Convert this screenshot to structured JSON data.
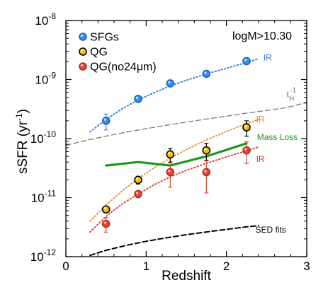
{
  "chart_data": {
    "type": "scatter",
    "xlabel": "Redshift",
    "ylabel": "sSFR (yr",
    "ylabel_sup": "-1",
    "ylabel_close": ")",
    "xlim": [
      0,
      3
    ],
    "ylim": [
      1e-12,
      1e-08
    ],
    "yscale": "log",
    "xticks": [
      0,
      1,
      2,
      3
    ],
    "yticks": [
      {
        "value": 1e-12,
        "mant": "10",
        "exp": "-12"
      },
      {
        "value": 1e-11,
        "mant": "10",
        "exp": "-11"
      },
      {
        "value": 1e-10,
        "mant": "10",
        "exp": "-10"
      },
      {
        "value": 1e-09,
        "mant": "10",
        "exp": "-9"
      },
      {
        "value": 1e-08,
        "mant": "10",
        "exp": "-8"
      }
    ],
    "subset_label": "logM>10.30",
    "legend_position": "top-left",
    "series": [
      {
        "name": "SFGs",
        "color": "#3a8ee6",
        "x": [
          0.5,
          0.9,
          1.3,
          1.75,
          2.25
        ],
        "y": [
          2e-10,
          4.7e-10,
          8.6e-10,
          1.25e-09,
          2.05e-09
        ],
        "yerr_lo": [
          6e-11,
          5e-11,
          6e-11,
          7e-11,
          9e-11
        ],
        "yerr_hi": [
          6e-11,
          5e-11,
          6e-11,
          7e-11,
          9e-11
        ]
      },
      {
        "name": "QG",
        "color": "#f2c200",
        "x": [
          0.5,
          0.9,
          1.3,
          1.75,
          2.25
        ],
        "y": [
          6.3e-12,
          2e-11,
          5.4e-11,
          6.3e-11,
          1.55e-10
        ],
        "yerr_lo": [
          6e-13,
          3e-12,
          1.4e-11,
          2e-11,
          4.5e-11
        ],
        "yerr_hi": [
          6e-13,
          3e-12,
          1.4e-11,
          2e-11,
          4.5e-11
        ]
      },
      {
        "name": "QG(no24μm)",
        "color": "#e0493a",
        "x": [
          0.5,
          0.9,
          1.3,
          1.75,
          2.25
        ],
        "y": [
          3.6e-12,
          1.15e-11,
          2.7e-11,
          2.7e-11,
          6.3e-11
        ],
        "yerr_lo": [
          1e-12,
          1.5e-12,
          1.2e-11,
          1.5e-11,
          2.5e-11
        ],
        "yerr_hi": [
          1e-12,
          1.5e-12,
          1.2e-11,
          1.5e-11,
          2.5e-11
        ]
      }
    ],
    "curves": [
      {
        "label": "IR",
        "color": "#1f7fd6",
        "style": "dotted",
        "x": [
          0.3,
          0.5,
          0.7,
          0.9,
          1.1,
          1.3,
          1.5,
          1.75,
          2.0,
          2.25,
          2.4
        ],
        "y": [
          1.3e-10,
          2.1e-10,
          3.2e-10,
          4.5e-10,
          6e-10,
          7.8e-10,
          9.7e-10,
          1.25e-09,
          1.55e-09,
          1.95e-09,
          2.25e-09
        ]
      },
      {
        "label": "t",
        "label_sub": "H",
        "label_sup": "-1",
        "color": "#777777",
        "style": "dashed",
        "x": [
          0.0,
          0.25,
          0.5,
          0.75,
          1.0,
          1.25,
          1.5,
          1.75,
          2.0,
          2.25,
          2.5,
          2.75,
          3.0
        ],
        "y": [
          7.7e-11,
          9.3e-11,
          1.1e-10,
          1.28e-10,
          1.47e-10,
          1.68e-10,
          1.9e-10,
          2.14e-10,
          2.4e-10,
          2.7e-10,
          3e-10,
          3.35e-10,
          4.1e-10
        ]
      },
      {
        "label": "IR",
        "color": "#f08a24",
        "style": "dotted",
        "x": [
          0.3,
          0.5,
          0.7,
          0.9,
          1.1,
          1.3,
          1.5,
          1.75,
          2.0,
          2.25,
          2.4
        ],
        "y": [
          4e-12,
          7.5e-12,
          1.3e-11,
          2.1e-11,
          3.2e-11,
          4.7e-11,
          6.5e-11,
          9.5e-11,
          1.32e-10,
          1.8e-10,
          2.1e-10
        ]
      },
      {
        "label": "IR",
        "color": "#d43a2c",
        "style": "dotted",
        "x": [
          0.3,
          0.5,
          0.7,
          0.9,
          1.1,
          1.3,
          1.5,
          1.75,
          2.0,
          2.25,
          2.4
        ],
        "y": [
          2.6e-12,
          4.8e-12,
          7.8e-12,
          1.15e-11,
          1.65e-11,
          2.25e-11,
          2.9e-11,
          3.8e-11,
          4.9e-11,
          6.2e-11,
          7.2e-11
        ]
      },
      {
        "label": "Mass Loss",
        "color": "#1a9a1a",
        "style": "solid",
        "x": [
          0.5,
          0.9,
          1.3,
          1.75,
          2.25
        ],
        "y": [
          3.5e-11,
          4e-11,
          3.5e-11,
          5e-11,
          8.3e-11
        ]
      },
      {
        "label": "SED fits",
        "color": "#000000",
        "style": "dashed",
        "x": [
          0.3,
          0.5,
          0.75,
          1.0,
          1.25,
          1.5,
          1.75,
          2.0,
          2.25,
          2.4
        ],
        "y": [
          1.05e-12,
          1.28e-12,
          1.55e-12,
          1.82e-12,
          2.08e-12,
          2.35e-12,
          2.62e-12,
          2.9e-12,
          3.2e-12,
          3.35e-12
        ]
      }
    ]
  }
}
